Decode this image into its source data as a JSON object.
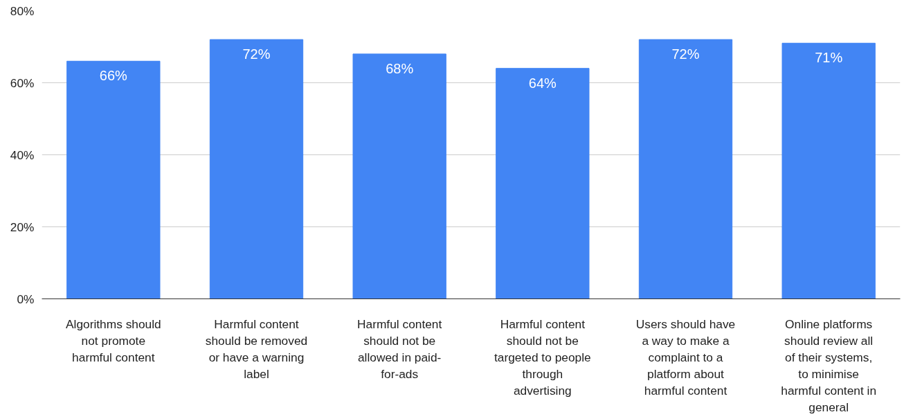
{
  "chart_data": {
    "type": "bar",
    "categories": [
      "Algorithms should not promote harmful content",
      "Harmful content should be removed or have a warning label",
      "Harmful content should not be allowed in paid-for-ads",
      "Harmful content should not be targeted to people through advertising",
      "Users should have a way to make a complaint to a platform about harmful content",
      "Online platforms should review all of their systems, to minimise harmful content in general"
    ],
    "values": [
      66,
      72,
      68,
      64,
      72,
      71
    ],
    "value_labels": [
      "66%",
      "72%",
      "68%",
      "64%",
      "72%",
      "71%"
    ],
    "color": "#4285f4",
    "ylim": [
      0,
      80
    ],
    "yticks": [
      {
        "value": 0,
        "label": "0%"
      },
      {
        "value": 20,
        "label": "20%"
      },
      {
        "value": 40,
        "label": "40%"
      },
      {
        "value": 60,
        "label": "60%"
      },
      {
        "value": 80,
        "label": "80%"
      }
    ],
    "grid": "y"
  }
}
